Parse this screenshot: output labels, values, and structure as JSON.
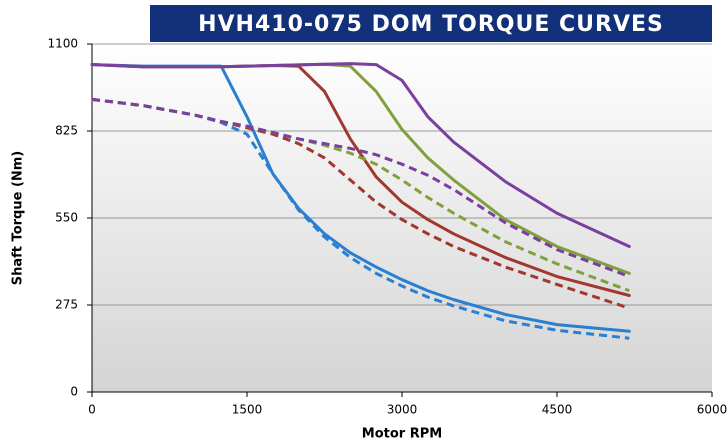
{
  "chart_data": {
    "type": "line",
    "title": "HVH410-075 DOM TORQUE CURVES",
    "x_label": "Motor RPM",
    "y_label": "Shaft Torque (Nm)",
    "x": [
      0,
      500,
      1000,
      1250,
      1500,
      1750,
      2000,
      2250,
      2500,
      2750,
      3000,
      3250,
      3500,
      4000,
      4500,
      5200
    ],
    "series": [
      {
        "color": "#2a7fd0",
        "dash": false,
        "values": [
          1035,
          1030,
          1030,
          1030,
          870,
          690,
          580,
          500,
          440,
          395,
          355,
          320,
          292,
          245,
          213,
          192
        ]
      },
      {
        "color": "#2a7fd0",
        "dash": true,
        "values": [
          925,
          905,
          875,
          852,
          815,
          690,
          575,
          490,
          425,
          375,
          335,
          300,
          272,
          225,
          195,
          170
        ]
      },
      {
        "color": "#a0382f",
        "dash": false,
        "values": [
          1035,
          1028,
          1028,
          1028,
          1030,
          1032,
          1030,
          950,
          800,
          680,
          600,
          545,
          500,
          425,
          365,
          305
        ]
      },
      {
        "color": "#a0382f",
        "dash": true,
        "values": [
          925,
          905,
          875,
          855,
          835,
          815,
          785,
          740,
          670,
          600,
          545,
          500,
          460,
          395,
          340,
          265
        ]
      },
      {
        "color": "#7fa03a",
        "dash": false,
        "values": [
          1035,
          1028,
          1028,
          1028,
          1030,
          1032,
          1034,
          1036,
          1030,
          950,
          830,
          740,
          670,
          545,
          460,
          375
        ]
      },
      {
        "color": "#7fa03a",
        "dash": true,
        "values": [
          925,
          905,
          875,
          855,
          840,
          820,
          800,
          780,
          755,
          720,
          670,
          615,
          565,
          475,
          405,
          320
        ]
      },
      {
        "color": "#7a3fa0",
        "dash": false,
        "values": [
          1035,
          1028,
          1028,
          1028,
          1030,
          1032,
          1034,
          1036,
          1038,
          1035,
          985,
          870,
          790,
          665,
          565,
          460
        ]
      },
      {
        "color": "#7a3fa0",
        "dash": true,
        "values": [
          925,
          905,
          875,
          855,
          840,
          820,
          800,
          785,
          770,
          750,
          720,
          685,
          640,
          535,
          450,
          365
        ]
      }
    ],
    "xlim": [
      0,
      6000
    ],
    "xticks": [
      0,
      1500,
      3000,
      4500,
      6000
    ],
    "ylim": [
      0,
      1100
    ],
    "yticks": [
      0,
      275,
      550,
      825,
      1100
    ],
    "grid": true
  }
}
